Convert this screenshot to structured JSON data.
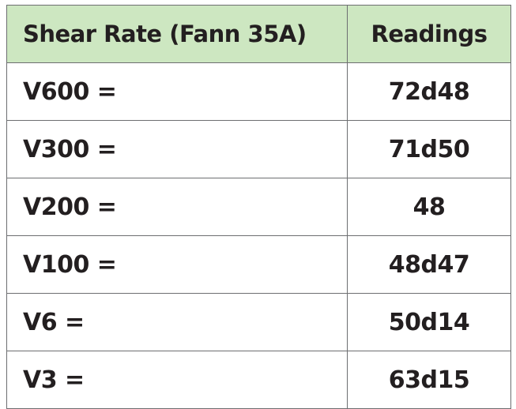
{
  "table": {
    "headers": {
      "shear_rate": "Shear Rate (Fann 35A)",
      "readings": "Readings"
    },
    "rows": [
      {
        "shear_rate": "V600 =",
        "reading": "72d48"
      },
      {
        "shear_rate": "V300 =",
        "reading": "71d50"
      },
      {
        "shear_rate": "V200 =",
        "reading": "48"
      },
      {
        "shear_rate": "V100 =",
        "reading": "48d47"
      },
      {
        "shear_rate": "V6 =",
        "reading": "50d14"
      },
      {
        "shear_rate": "V3 =",
        "reading": "63d15"
      }
    ],
    "colors": {
      "header_background": "#cde7c1",
      "border": "#6d6e71",
      "text": "#231f20"
    }
  }
}
